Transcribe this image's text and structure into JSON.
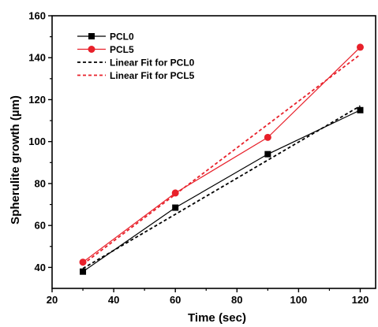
{
  "chart_data": {
    "type": "line",
    "title": "",
    "xlabel": "Time (sec)",
    "ylabel": "Spherulite growth (µm)",
    "xlim": [
      20,
      125
    ],
    "ylim": [
      30,
      160
    ],
    "xticks": [
      20,
      40,
      60,
      80,
      100,
      120
    ],
    "yticks": [
      40,
      60,
      80,
      100,
      120,
      140,
      160
    ],
    "grid": false,
    "legend_position": "top-left",
    "series": [
      {
        "name": "PCL0",
        "kind": "line-markers",
        "marker": "square",
        "color": "#000000",
        "x": [
          30,
          60,
          90,
          120
        ],
        "y": [
          38,
          68.5,
          94,
          115
        ]
      },
      {
        "name": "PCL5",
        "kind": "line-markers",
        "marker": "circle",
        "color": "#e8202a",
        "x": [
          30,
          60,
          90,
          120
        ],
        "y": [
          42.5,
          75.5,
          102,
          145
        ]
      },
      {
        "name": "Linear Fit for PCL0",
        "kind": "dashed",
        "color": "#000000",
        "x": [
          30,
          120
        ],
        "y": [
          39.5,
          117
        ]
      },
      {
        "name": "Linear Fit for PCL5",
        "kind": "dashed",
        "color": "#e8202a",
        "x": [
          30,
          120
        ],
        "y": [
          41.5,
          141.5
        ]
      }
    ]
  }
}
